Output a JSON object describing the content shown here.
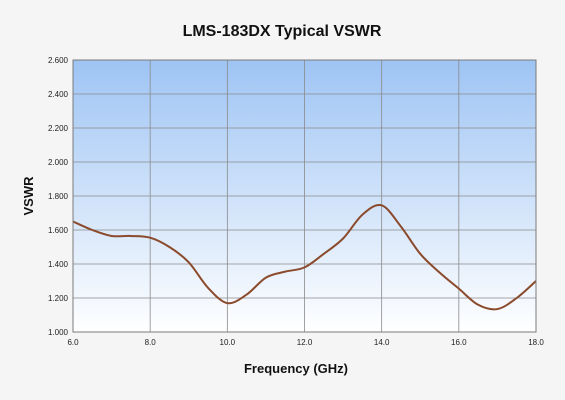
{
  "chart_data": {
    "type": "line",
    "title": "LMS-183DX Typical VSWR",
    "xlabel": "Frequency (GHz)",
    "ylabel": "VSWR",
    "xlim": [
      6.0,
      18.0
    ],
    "ylim": [
      1.0,
      2.6
    ],
    "x_ticks": [
      "6.0",
      "8.0",
      "10.0",
      "12.0",
      "14.0",
      "16.0",
      "18.0"
    ],
    "y_ticks": [
      "1.000",
      "1.200",
      "1.400",
      "1.600",
      "1.800",
      "2.000",
      "2.200",
      "2.400",
      "2.600"
    ],
    "grid": true,
    "legend": "none",
    "series": [
      {
        "line_color": "#8B4A2B",
        "x": [
          6.0,
          6.5,
          7.0,
          7.5,
          8.0,
          8.5,
          9.0,
          9.5,
          10.0,
          10.5,
          11.0,
          11.5,
          12.0,
          12.5,
          13.0,
          13.5,
          14.0,
          14.5,
          15.0,
          15.5,
          16.0,
          16.5,
          17.0,
          17.5,
          18.0
        ],
        "y": [
          1.65,
          1.6,
          1.565,
          1.565,
          1.555,
          1.5,
          1.41,
          1.26,
          1.17,
          1.22,
          1.32,
          1.355,
          1.38,
          1.46,
          1.55,
          1.69,
          1.745,
          1.62,
          1.46,
          1.35,
          1.255,
          1.16,
          1.135,
          1.2,
          1.3
        ]
      }
    ],
    "colors": {
      "plot_top": "#9ec4f4",
      "plot_bottom": "#ffffff",
      "grid": "#8a8a8a",
      "frame": "#7a7a7a"
    }
  }
}
